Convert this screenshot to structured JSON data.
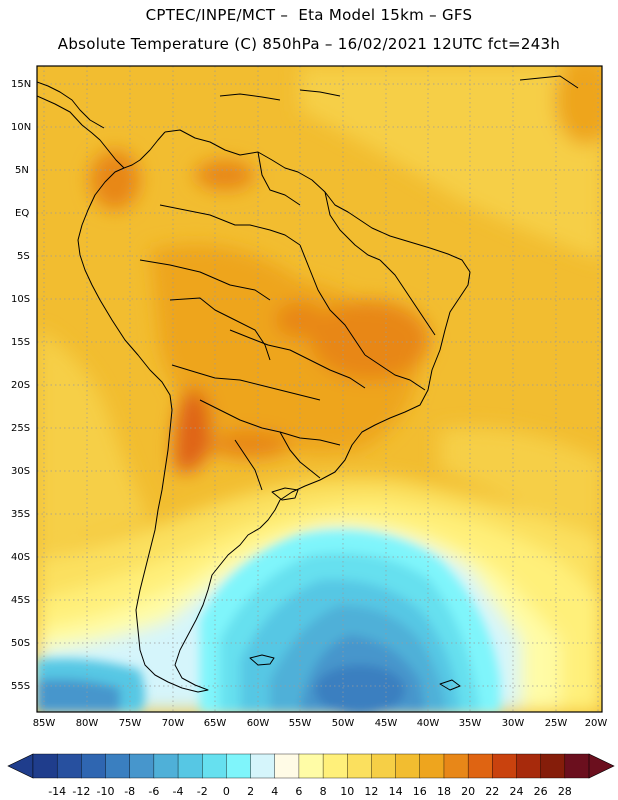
{
  "header": {
    "line1": "CPTEC/INPE/MCT –  Eta Model 15km – GFS",
    "line2": "Absolute Temperature (C) 850hPa – 16/02/2021 12UTC fct=243h"
  },
  "map": {
    "lat_labels": [
      "15N",
      "10N",
      "5N",
      "EQ",
      "5S",
      "10S",
      "15S",
      "20S",
      "25S",
      "30S",
      "35S",
      "40S",
      "45S",
      "50S",
      "55S"
    ],
    "lon_labels": [
      "85W",
      "80W",
      "75W",
      "70W",
      "65W",
      "60W",
      "55W",
      "50W",
      "45W",
      "40W",
      "35W",
      "30W",
      "25W",
      "20W"
    ]
  },
  "colorbar": {
    "values": [
      "-14",
      "-12",
      "-10",
      "-8",
      "-6",
      "-4",
      "-2",
      "0",
      "2",
      "4",
      "6",
      "8",
      "10",
      "12",
      "14",
      "16",
      "18",
      "20",
      "22",
      "24",
      "26",
      "28"
    ],
    "colors": [
      "#1f3d8c",
      "#27509f",
      "#2f66b1",
      "#3a7fc0",
      "#4796cc",
      "#4fb0d8",
      "#56c7e4",
      "#66e0ef",
      "#7ff5fb",
      "#d5f5fb",
      "#fffbe6",
      "#fffca6",
      "#fff07a",
      "#fbe05e",
      "#f6cf46",
      "#f2bd30",
      "#eea51e",
      "#e88718",
      "#df6412",
      "#c9420e",
      "#a72a0c",
      "#851d0a",
      "#6b0f1e"
    ]
  }
}
